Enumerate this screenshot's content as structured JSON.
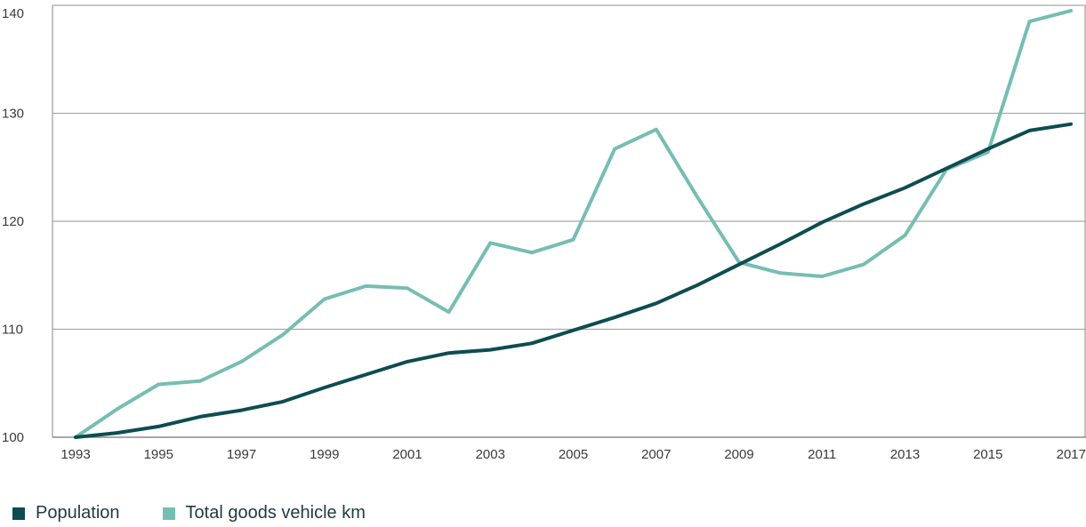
{
  "chart_data": {
    "type": "line",
    "title": "",
    "xlabel": "",
    "ylabel": "",
    "x": [
      1993,
      1994,
      1995,
      1996,
      1997,
      1998,
      1999,
      2000,
      2001,
      2002,
      2003,
      2004,
      2005,
      2006,
      2007,
      2008,
      2009,
      2010,
      2011,
      2012,
      2013,
      2014,
      2015,
      2016,
      2017
    ],
    "x_tick_labels": [
      "1993",
      "1995",
      "1997",
      "1999",
      "2001",
      "2003",
      "2005",
      "2007",
      "2009",
      "2011",
      "2013",
      "2015",
      "2017"
    ],
    "y_tick_labels": [
      "100",
      "110",
      "120",
      "130",
      "140"
    ],
    "ylim": [
      100,
      140
    ],
    "grid": "horizontal",
    "legend_position": "bottom-left",
    "series": [
      {
        "name": "Population",
        "color": "#0e4c50",
        "values": [
          100,
          100.4,
          101.0,
          101.9,
          102.5,
          103.3,
          104.6,
          105.8,
          107.0,
          107.8,
          108.1,
          108.7,
          109.9,
          111.1,
          112.4,
          114.1,
          116.0,
          117.9,
          119.9,
          121.6,
          123.1,
          124.9,
          126.7,
          128.4,
          129.0
        ]
      },
      {
        "name": "Total goods vehicle km",
        "color": "#76bdb3",
        "values": [
          100,
          102.6,
          104.9,
          105.2,
          107.0,
          109.5,
          112.8,
          114.0,
          113.8,
          111.6,
          118.0,
          117.1,
          118.3,
          126.7,
          128.5,
          122.2,
          116.2,
          115.2,
          114.9,
          116.0,
          118.7,
          124.8,
          126.4,
          138.5,
          139.5
        ]
      }
    ]
  }
}
